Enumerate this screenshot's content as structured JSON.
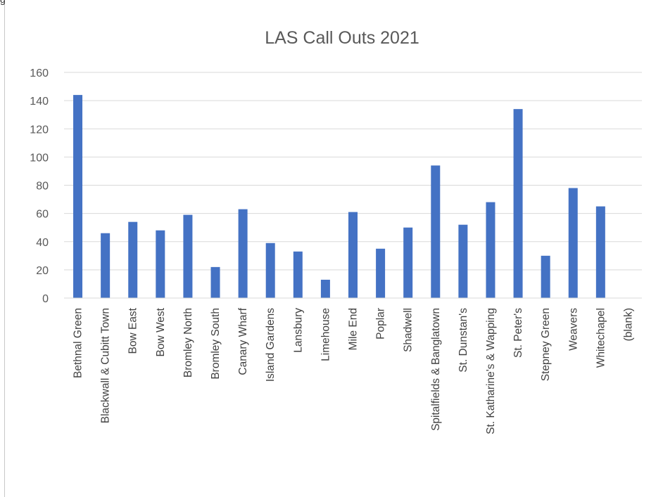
{
  "corner_text": "g",
  "chart_data": {
    "type": "bar",
    "title": "LAS Call Outs 2021",
    "xlabel": "",
    "ylabel": "",
    "ylim": [
      0,
      160
    ],
    "yticks": [
      0,
      20,
      40,
      60,
      80,
      100,
      120,
      140,
      160
    ],
    "grid": true,
    "legend": "none",
    "bar_color": "#4472c4",
    "grid_color": "#d9d9d9",
    "categories": [
      "Bethnal Green",
      "Blackwall & Cubitt Town",
      "Bow East",
      "Bow West",
      "Bromley North",
      "Bromley South",
      "Canary Wharf",
      "Island Gardens",
      "Lansbury",
      "Limehouse",
      "Mile End",
      "Poplar",
      "Shadwell",
      "Spitalfields & Banglatown",
      "St. Dunstan's",
      "St. Katharine's & Wapping",
      "St. Peter's",
      "Stepney Green",
      "Weavers",
      "Whitechapel",
      "(blank)"
    ],
    "values": [
      144,
      46,
      54,
      48,
      59,
      22,
      63,
      39,
      33,
      13,
      61,
      35,
      50,
      94,
      52,
      68,
      134,
      30,
      78,
      65,
      0
    ]
  }
}
